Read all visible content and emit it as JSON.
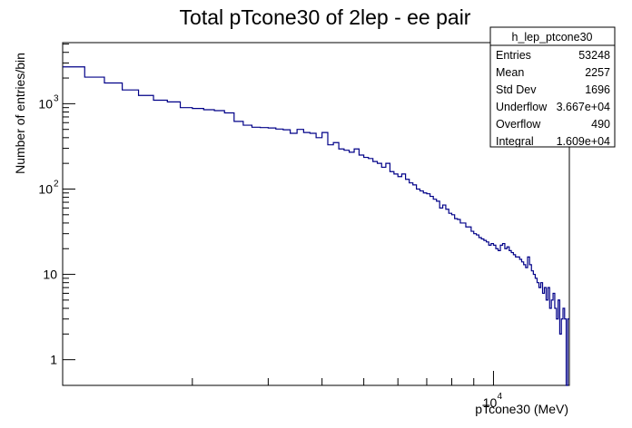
{
  "chart_data": {
    "type": "histogram",
    "title": "Total pTcone30 of 2lep - ee pair",
    "xlabel": "pTcone30 (MeV)",
    "ylabel": "Number of entries/bin",
    "x_scale": "log",
    "y_scale": "log",
    "x_major_tick_label": "10",
    "x_major_tick_exponent": "4",
    "y_tick_labels": [
      {
        "value": 1,
        "base": "1",
        "exp": ""
      },
      {
        "value": 10,
        "base": "10",
        "exp": ""
      },
      {
        "value": 100,
        "base": "10",
        "exp": "2"
      },
      {
        "value": 1000,
        "base": "10",
        "exp": "3"
      }
    ],
    "xlim": [
      1000,
      15000
    ],
    "ylim": [
      0.5,
      5200
    ],
    "grid": false,
    "line_color": "#000088",
    "bins_x_range": [
      1000,
      15000
    ],
    "bin_values": [
      2700,
      2700,
      2050,
      2050,
      1750,
      1750,
      1450,
      1450,
      1250,
      1250,
      1100,
      1100,
      1050,
      1050,
      900,
      900,
      880,
      880,
      850,
      850,
      830,
      830,
      780,
      780,
      620,
      620,
      560,
      560,
      530,
      530,
      525,
      525,
      520,
      520,
      505,
      505,
      495,
      495,
      450,
      450,
      500,
      500,
      460,
      460,
      450,
      450,
      400,
      400,
      460,
      460,
      330,
      330,
      350,
      350,
      295,
      295,
      285,
      285,
      270,
      270,
      295,
      295,
      250,
      250,
      235,
      235,
      228,
      228,
      210,
      210,
      200,
      200,
      180,
      180,
      200,
      200,
      160,
      160,
      150,
      150,
      140,
      140,
      150,
      150,
      130,
      130,
      118,
      118,
      112,
      112,
      100,
      100,
      95,
      95,
      90,
      90,
      88,
      88,
      82,
      82,
      76,
      76,
      72,
      72,
      60,
      60,
      65,
      65,
      58,
      58,
      52,
      52,
      50,
      50,
      45,
      45,
      44,
      44,
      40,
      40,
      40,
      40,
      36,
      36,
      36,
      36,
      32,
      32,
      30,
      30,
      29,
      29,
      27,
      27,
      26,
      26,
      25,
      25,
      24,
      24,
      22,
      22,
      23,
      23,
      22,
      22,
      20,
      20,
      19,
      19,
      22,
      22,
      23,
      23,
      20,
      20,
      21,
      21,
      19,
      19,
      18,
      18,
      17,
      17,
      16,
      16,
      16,
      16,
      15,
      15,
      14,
      14,
      13,
      13,
      12,
      12,
      16,
      16,
      13,
      13,
      11,
      11,
      10,
      10,
      9,
      9,
      8,
      8,
      7,
      7,
      8,
      8,
      6,
      6,
      7,
      7,
      5,
      5,
      7,
      7,
      4,
      4,
      5,
      5,
      6,
      6,
      4,
      4,
      3,
      3,
      5,
      5,
      2,
      2,
      3,
      3,
      4,
      4,
      3,
      3,
      0.2,
      0.2,
      3,
      3
    ],
    "stats_box": {
      "title": "h_lep_ptcone30",
      "rows": [
        {
          "label": "Entries",
          "value": "53248"
        },
        {
          "label": "Mean",
          "value": "2257"
        },
        {
          "label": "Std Dev",
          "value": "1696"
        },
        {
          "label": "Underflow",
          "value": "3.667e+04"
        },
        {
          "label": "Overflow",
          "value": "490"
        },
        {
          "label": "Integral",
          "value": "1.609e+04"
        }
      ]
    }
  }
}
